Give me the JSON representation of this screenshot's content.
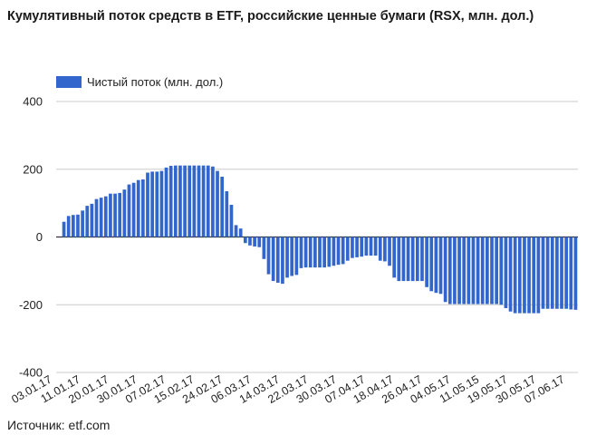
{
  "header": {
    "title": "Кумулятивный поток средств в ETF, российские ценные бумаги (RSX, млн. дол.)"
  },
  "footer": {
    "source": "Источник: etf.com"
  },
  "colors": {
    "bar": "#3366cc",
    "grid": "#cccccc",
    "zero_line": "#333333",
    "axis_text": "#222222"
  },
  "chart_data": {
    "type": "bar",
    "title": "Кумулятивный поток средств в ETF, российские ценные бумаги (RSX, млн. дол.)",
    "legend": {
      "position": "top-left",
      "entries": [
        "Чистый поток (млн. дол.)"
      ]
    },
    "grid": true,
    "ylim": [
      -400,
      400
    ],
    "y_ticks": [
      400,
      200,
      0,
      -200,
      -400
    ],
    "x_tick_labels": [
      "03.01.17",
      "11.01.17",
      "20.01.17",
      "30.01.17",
      "07.02.17",
      "15.02.17",
      "24.02.17",
      "06.03.17",
      "14.03.17",
      "22.03.17",
      "30.03.17",
      "07.04.17",
      "18.04.17",
      "26.04.17",
      "04.05.17",
      "11.05.15",
      "19.05.17",
      "30.05.17",
      "07.06.17"
    ],
    "series": [
      {
        "name": "Чистый поток (млн. дол.)",
        "values": [
          45,
          62,
          65,
          66,
          78,
          92,
          98,
          112,
          116,
          120,
          128,
          128,
          130,
          140,
          155,
          160,
          168,
          170,
          190,
          193,
          193,
          195,
          205,
          210,
          211,
          211,
          211,
          211,
          211,
          211,
          211,
          211,
          208,
          195,
          178,
          135,
          95,
          35,
          25,
          -18,
          -25,
          -28,
          -30,
          -65,
          -110,
          -130,
          -135,
          -138,
          -120,
          -115,
          -112,
          -92,
          -90,
          -90,
          -90,
          -90,
          -90,
          -88,
          -85,
          -82,
          -80,
          -70,
          -62,
          -60,
          -58,
          -55,
          -55,
          -55,
          -70,
          -72,
          -85,
          -120,
          -130,
          -130,
          -130,
          -130,
          -130,
          -130,
          -148,
          -160,
          -165,
          -168,
          -192,
          -198,
          -198,
          -198,
          -198,
          -198,
          -198,
          -198,
          -198,
          -198,
          -198,
          -198,
          -200,
          -210,
          -220,
          -225,
          -225,
          -225,
          -225,
          -225,
          -225,
          -212,
          -212,
          -212,
          -212,
          -212,
          -212,
          -214,
          -215
        ]
      }
    ]
  }
}
